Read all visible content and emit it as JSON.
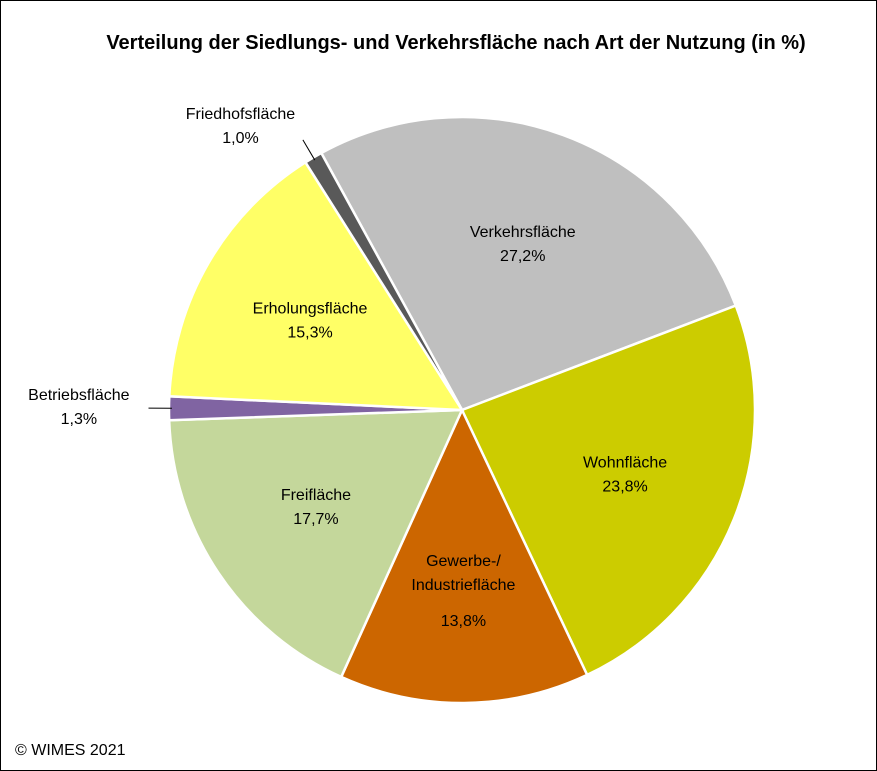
{
  "chart_data": {
    "type": "pie",
    "title": "Verteilung der Siedlungs- und Verkehrsfläche nach Art der Nutzung (in %)",
    "categories": [
      "Verkehrsfläche",
      "Wohnfläche",
      "Gewerbe-/ Industriefläche",
      "Freifläche",
      "Betriebsfläche",
      "Erholungsfläche",
      "Friedhofsfläche"
    ],
    "values": [
      27.2,
      23.8,
      13.8,
      17.7,
      1.3,
      15.3,
      1.0
    ],
    "value_labels": [
      "27,2%",
      "23,8%",
      "13,8%",
      "17,7%",
      "1,3%",
      "15,3%",
      "1,0%"
    ],
    "colors": [
      "#bfbfbf",
      "#cccc00",
      "#cc6600",
      "#c4d79b",
      "#8064a2",
      "#ffff66",
      "#595959"
    ],
    "source": "© WIMES 2021"
  }
}
